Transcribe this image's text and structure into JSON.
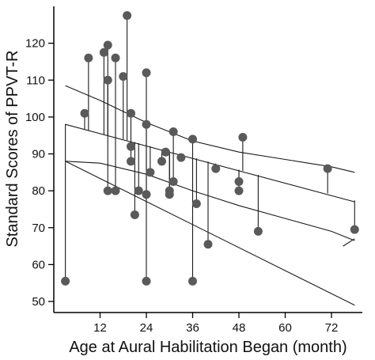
{
  "chart_data": {
    "type": "scatter",
    "title": "",
    "xlabel": "Age at Aural Habilitation Began (month)",
    "ylabel": "Standard Scores of PPVT-R",
    "xlim": [
      0,
      80
    ],
    "ylim": [
      47,
      130
    ],
    "x_ticks": [
      "12",
      "24",
      "36",
      "48",
      "60",
      "72"
    ],
    "y_ticks": [
      "50",
      "60",
      "70",
      "80",
      "90",
      "100",
      "110",
      "120"
    ],
    "grid": false,
    "legend": "none",
    "colors": {
      "point": "#5a5a5a",
      "line": "#1a1a1a",
      "axis": "#000000"
    },
    "points": [
      {
        "x": 3,
        "y": 55.5,
        "fit": 98.1
      },
      {
        "x": 8,
        "y": 101,
        "fit": 96.7
      },
      {
        "x": 9,
        "y": 116,
        "fit": 96.4
      },
      {
        "x": 13,
        "y": 117.5,
        "fit": 95.3
      },
      {
        "x": 14,
        "y": 119.5,
        "fit": 95.0
      },
      {
        "x": 14,
        "y": 110,
        "fit": 95.0
      },
      {
        "x": 14,
        "y": 80,
        "fit": 95.0
      },
      {
        "x": 16,
        "y": 116,
        "fit": 94.5
      },
      {
        "x": 16,
        "y": 80,
        "fit": 94.5
      },
      {
        "x": 18,
        "y": 111,
        "fit": 94.0
      },
      {
        "x": 19,
        "y": 127.5,
        "fit": 93.7
      },
      {
        "x": 20,
        "y": 101,
        "fit": 93.4
      },
      {
        "x": 20,
        "y": 92,
        "fit": 93.4
      },
      {
        "x": 20,
        "y": 88,
        "fit": 93.4
      },
      {
        "x": 21,
        "y": 73.5,
        "fit": 93.2
      },
      {
        "x": 22,
        "y": 80,
        "fit": 92.9
      },
      {
        "x": 24,
        "y": 112,
        "fit": 92.3
      },
      {
        "x": 24,
        "y": 98,
        "fit": 92.3
      },
      {
        "x": 24,
        "y": 79,
        "fit": 92.3
      },
      {
        "x": 24,
        "y": 55.5,
        "fit": 92.3
      },
      {
        "x": 25,
        "y": 85,
        "fit": 92.1
      },
      {
        "x": 28,
        "y": 88,
        "fit": 91.2
      },
      {
        "x": 29,
        "y": 90.5,
        "fit": 91.0
      },
      {
        "x": 30,
        "y": 80,
        "fit": 90.7
      },
      {
        "x": 30,
        "y": 79,
        "fit": 90.7
      },
      {
        "x": 31,
        "y": 96,
        "fit": 90.4
      },
      {
        "x": 31,
        "y": 82.5,
        "fit": 90.4
      },
      {
        "x": 33,
        "y": 89,
        "fit": 89.9
      },
      {
        "x": 36,
        "y": 94,
        "fit": 89.0
      },
      {
        "x": 36,
        "y": 55.5,
        "fit": 89.0
      },
      {
        "x": 37,
        "y": 76.5,
        "fit": 88.8
      },
      {
        "x": 40,
        "y": 65.5,
        "fit": 87.9
      },
      {
        "x": 42,
        "y": 86,
        "fit": 87.4
      },
      {
        "x": 48,
        "y": 82.5,
        "fit": 85.7
      },
      {
        "x": 48,
        "y": 80,
        "fit": 85.7
      },
      {
        "x": 49,
        "y": 94.5,
        "fit": 85.4
      },
      {
        "x": 53,
        "y": 69,
        "fit": 84.3
      },
      {
        "x": 71,
        "y": 86,
        "fit": 79.3
      },
      {
        "x": 78,
        "y": 69.5,
        "fit": 77.4
      }
    ],
    "lines": [
      {
        "role": "upper-curve",
        "points": [
          [
            3,
            108.5
          ],
          [
            12,
            104.5
          ],
          [
            24,
            98.5
          ],
          [
            36,
            93.5
          ],
          [
            48,
            90.5
          ],
          [
            60,
            88.5
          ],
          [
            72,
            86.5
          ],
          [
            78,
            85
          ]
        ]
      },
      {
        "role": "fit-line",
        "points": [
          [
            3,
            98
          ],
          [
            78,
            77
          ]
        ]
      },
      {
        "role": "lower-curve",
        "points": [
          [
            3,
            88
          ],
          [
            12,
            87.5
          ],
          [
            24,
            84.5
          ],
          [
            36,
            80
          ],
          [
            48,
            76
          ],
          [
            60,
            72.5
          ],
          [
            72,
            69
          ],
          [
            78,
            66.5
          ]
        ]
      },
      {
        "role": "lower-line",
        "points": [
          [
            3,
            88
          ],
          [
            78,
            49
          ]
        ]
      },
      {
        "role": "tail-hook",
        "points": [
          [
            75,
            65
          ],
          [
            78,
            67
          ]
        ]
      }
    ]
  }
}
